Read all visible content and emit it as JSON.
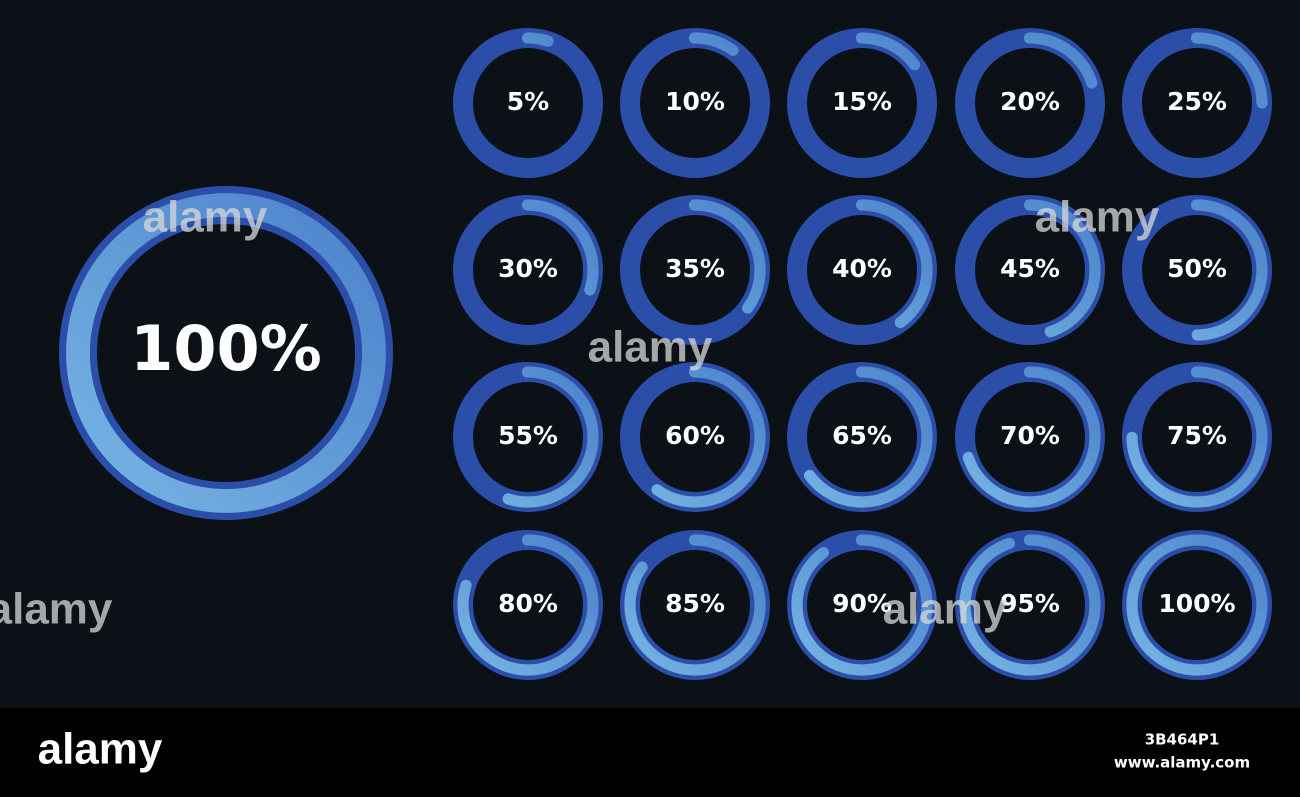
{
  "main": {
    "value": 100,
    "label": "100%"
  },
  "rings": [
    {
      "value": 5,
      "label": "5%"
    },
    {
      "value": 10,
      "label": "10%"
    },
    {
      "value": 15,
      "label": "15%"
    },
    {
      "value": 20,
      "label": "20%"
    },
    {
      "value": 25,
      "label": "25%"
    },
    {
      "value": 30,
      "label": "30%"
    },
    {
      "value": 35,
      "label": "35%"
    },
    {
      "value": 40,
      "label": "40%"
    },
    {
      "value": 45,
      "label": "45%"
    },
    {
      "value": 50,
      "label": "50%"
    },
    {
      "value": 55,
      "label": "55%"
    },
    {
      "value": 60,
      "label": "60%"
    },
    {
      "value": 65,
      "label": "65%"
    },
    {
      "value": 70,
      "label": "70%"
    },
    {
      "value": 75,
      "label": "75%"
    },
    {
      "value": 80,
      "label": "80%"
    },
    {
      "value": 85,
      "label": "85%"
    },
    {
      "value": 90,
      "label": "90%"
    },
    {
      "value": 95,
      "label": "95%"
    },
    {
      "value": 100,
      "label": "100%"
    }
  ],
  "watermarks": [
    "alamy",
    "alamy",
    "alamy",
    "alamy",
    "alamy"
  ],
  "footer": {
    "logo": "alamy",
    "image_id": "3B464P1",
    "url": "www.alamy.com"
  }
}
